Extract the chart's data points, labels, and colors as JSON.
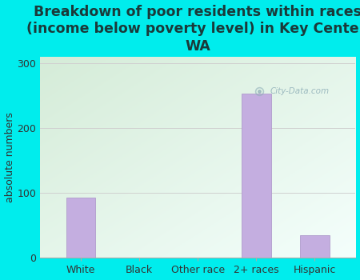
{
  "title": "Breakdown of poor residents within races\n(income below poverty level) in Key Center,\nWA",
  "categories": [
    "White",
    "Black",
    "Other race",
    "2+ races",
    "Hispanic"
  ],
  "values": [
    93,
    0,
    0,
    253,
    35
  ],
  "bar_color": "#c4aee0",
  "bar_edgecolor": "#b09ccc",
  "ylabel": "absolute numbers",
  "ylim": [
    0,
    310
  ],
  "yticks": [
    0,
    100,
    200,
    300
  ],
  "bg_color": "#00eded",
  "grid_color": "#d0d0d0",
  "title_fontsize": 12.5,
  "title_color": "#1a3a3a",
  "axis_label_fontsize": 9,
  "tick_fontsize": 9,
  "tick_color": "#333333",
  "watermark": "City-Data.com",
  "plot_bg_left_top": "#d8eedd",
  "plot_bg_right_bottom": "#f0faf8"
}
